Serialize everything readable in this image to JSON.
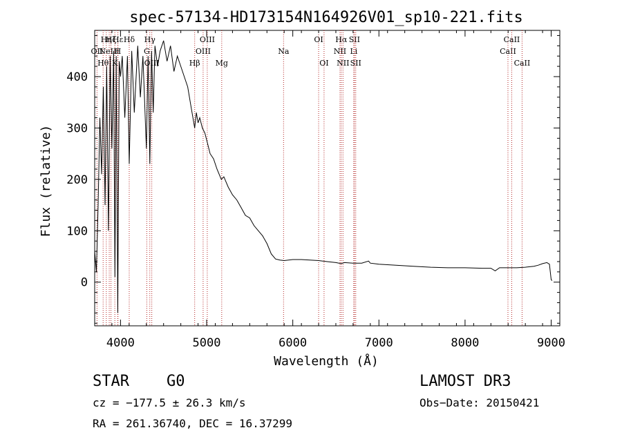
{
  "chart_data": {
    "type": "line",
    "title": "spec-57134-HD173154N164926V01_sp10-221.fits",
    "xlabel": "Wavelength (Å)",
    "ylabel": "Flux (relative)",
    "xlim": [
      3700,
      9100
    ],
    "ylim": [
      -85,
      490
    ],
    "xticks": [
      4000,
      5000,
      6000,
      7000,
      8000,
      9000
    ],
    "yticks": [
      0,
      100,
      200,
      300,
      400
    ],
    "series": [
      {
        "name": "spectrum",
        "color": "#000000",
        "x": [
          3700,
          3720,
          3740,
          3760,
          3780,
          3800,
          3820,
          3840,
          3860,
          3880,
          3900,
          3920,
          3935,
          3950,
          3968,
          3985,
          4000,
          4020,
          4050,
          4080,
          4101,
          4130,
          4160,
          4200,
          4230,
          4260,
          4300,
          4320,
          4340,
          4360,
          4380,
          4400,
          4430,
          4460,
          4500,
          4540,
          4580,
          4620,
          4660,
          4700,
          4740,
          4780,
          4820,
          4861,
          4880,
          4900,
          4920,
          4950,
          4980,
          5010,
          5040,
          5080,
          5120,
          5170,
          5200,
          5250,
          5300,
          5350,
          5400,
          5450,
          5500,
          5550,
          5600,
          5650,
          5700,
          5750,
          5800,
          5850,
          5900,
          6000,
          6100,
          6200,
          6300,
          6400,
          6500,
          6563,
          6600,
          6700,
          6800,
          6880,
          6900,
          7000,
          7200,
          7400,
          7600,
          7800,
          8000,
          8200,
          8300,
          8350,
          8400,
          8500,
          8600,
          8700,
          8800,
          8850,
          8900,
          8950,
          8980,
          9000,
          9010
        ],
        "y": [
          60,
          20,
          150,
          320,
          210,
          380,
          150,
          420,
          100,
          440,
          260,
          450,
          10,
          440,
          -60,
          430,
          400,
          440,
          320,
          440,
          230,
          450,
          330,
          460,
          360,
          440,
          260,
          440,
          230,
          450,
          330,
          460,
          420,
          450,
          470,
          430,
          460,
          410,
          440,
          420,
          400,
          380,
          340,
          300,
          330,
          310,
          320,
          300,
          290,
          270,
          250,
          240,
          220,
          200,
          205,
          185,
          170,
          160,
          145,
          130,
          125,
          110,
          100,
          90,
          75,
          55,
          45,
          43,
          42,
          44,
          44,
          43,
          42,
          40,
          38,
          36,
          38,
          37,
          37,
          41,
          37,
          35,
          33,
          31,
          29,
          28,
          28,
          27,
          27,
          22,
          28,
          28,
          28,
          29,
          31,
          33,
          36,
          38,
          35,
          5,
          3
        ]
      }
    ],
    "line_color": "#b22222",
    "lines": [
      {
        "label": "OII",
        "x": 3727,
        "row": 2
      },
      {
        "label": "Hθ",
        "x": 3798,
        "row": 3
      },
      {
        "label": "Hη",
        "x": 3835,
        "row": 1
      },
      {
        "label": "NeIII",
        "x": 3869,
        "row": 2
      },
      {
        "label": "Hζ",
        "x": 3889,
        "row": 1
      },
      {
        "label": "K",
        "x": 3934,
        "row": 3
      },
      {
        "label": "H",
        "x": 3968,
        "row": 2
      },
      {
        "label": "Hε",
        "x": 3970,
        "row": 1
      },
      {
        "label": "Hδ",
        "x": 4101,
        "row": 1
      },
      {
        "label": "G",
        "x": 4305,
        "row": 2
      },
      {
        "label": "Hγ",
        "x": 4340,
        "row": 1
      },
      {
        "label": "OIII",
        "x": 4363,
        "row": 3
      },
      {
        "label": "Hβ",
        "x": 4861,
        "row": 3
      },
      {
        "label": "OIII",
        "x": 4959,
        "row": 2
      },
      {
        "label": "OIII",
        "x": 5007,
        "row": 1
      },
      {
        "label": "Mg",
        "x": 5175,
        "row": 3
      },
      {
        "label": "Na",
        "x": 5893,
        "row": 2
      },
      {
        "label": "OI",
        "x": 6300,
        "row": 1
      },
      {
        "label": "OI",
        "x": 6363,
        "row": 3
      },
      {
        "label": "NII",
        "x": 6548,
        "row": 2
      },
      {
        "label": "Hα",
        "x": 6563,
        "row": 1
      },
      {
        "label": "NII",
        "x": 6583,
        "row": 3
      },
      {
        "label": "Li",
        "x": 6708,
        "row": 2
      },
      {
        "label": "SII",
        "x": 6716,
        "row": 1
      },
      {
        "label": "SII",
        "x": 6731,
        "row": 3
      },
      {
        "label": "CaII",
        "x": 8498,
        "row": 2
      },
      {
        "label": "CaII",
        "x": 8542,
        "row": 1
      },
      {
        "label": "CaII",
        "x": 8662,
        "row": 3
      }
    ]
  },
  "info": {
    "object_class": "STAR",
    "subclass": "G0",
    "survey": "LAMOST DR3",
    "velocity": "cz = −177.5 ± 26.3 km/s",
    "obs_date": "Obs−Date: 20150421",
    "coords": "RA = 261.36740, DEC =  16.37299"
  }
}
